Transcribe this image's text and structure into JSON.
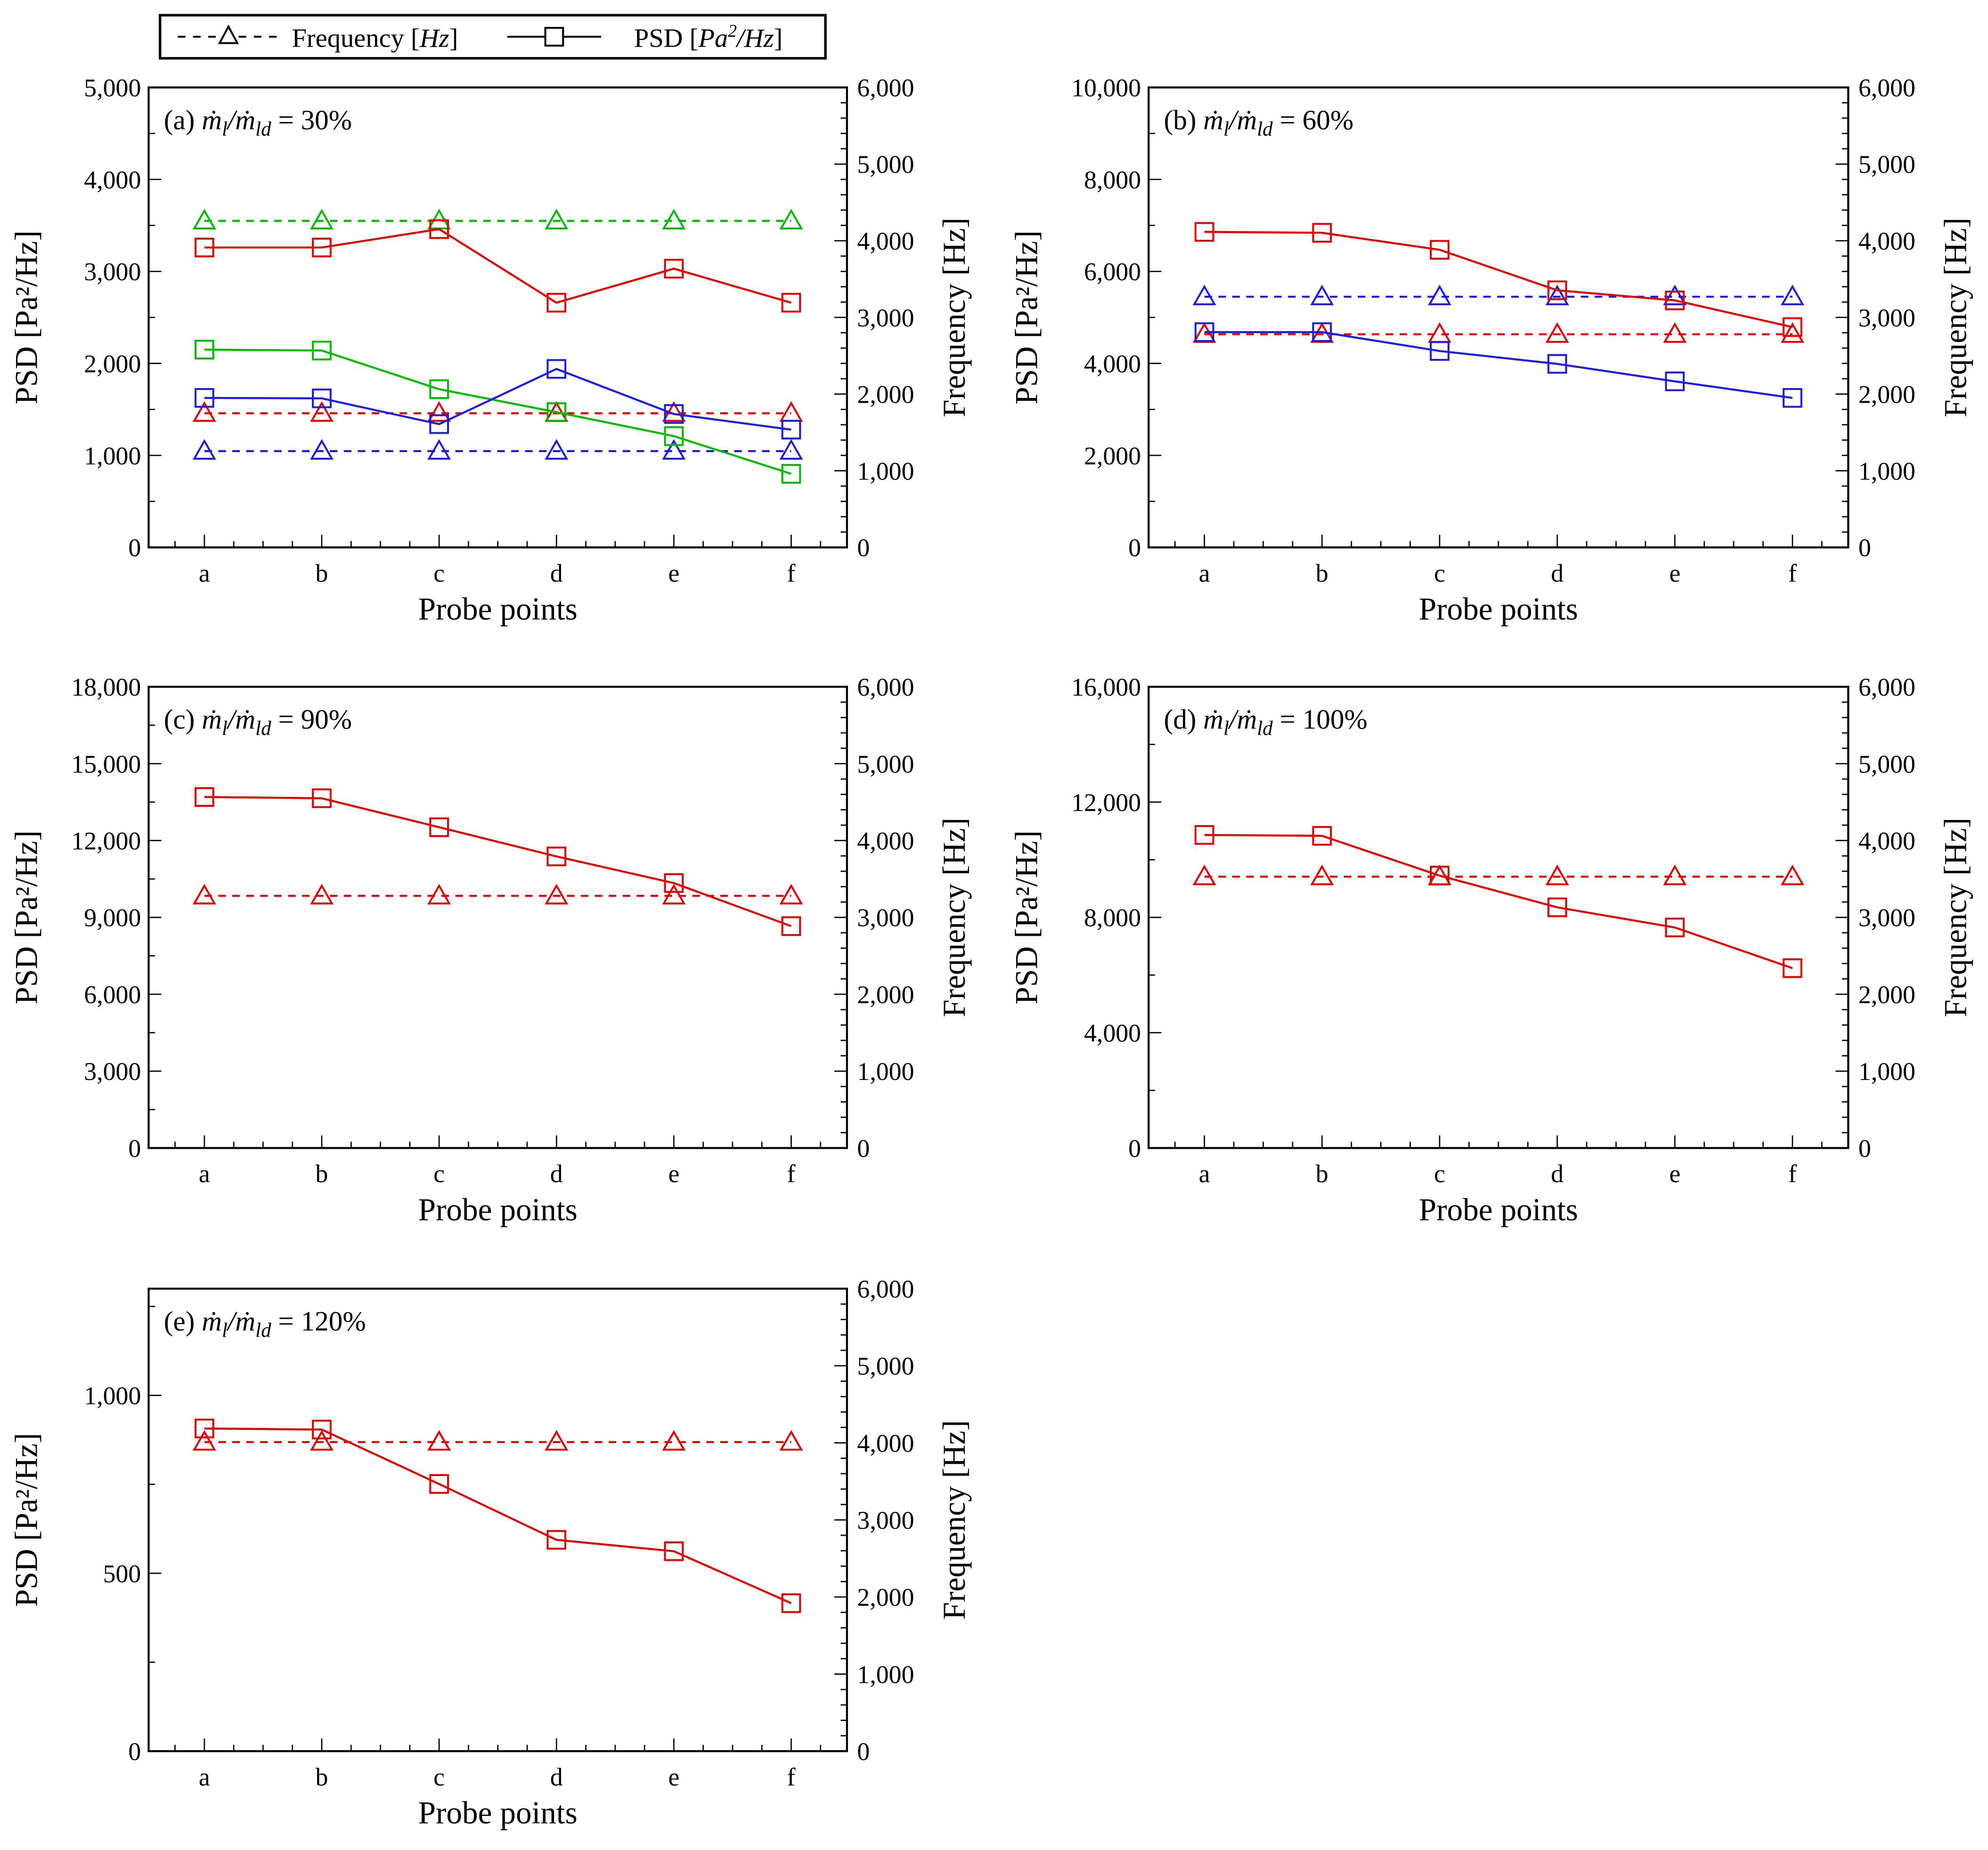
{
  "legend": {
    "frequency_label": "Frequency [",
    "frequency_unit": "Hz",
    "psd_label": "PSD [",
    "psd_unit_a": "Pa",
    "psd_unit_sup": "2",
    "psd_unit_b": "/Hz",
    "close": "]"
  },
  "formula": {
    "m": "ṁ",
    "sub1": "l",
    "slash": "/",
    "sub2": "ld",
    "eq": "="
  },
  "colors": {
    "red": "#e00000",
    "green": "#00bb00",
    "blue": "#1c1ce0",
    "axis": "#000000"
  },
  "chart_data": [
    {
      "type": "line",
      "panel": "(a)",
      "ratio": "30%",
      "xlabel": "Probe points",
      "ylabel": "PSD [Pa²/Hz]",
      "y2label": "Frequency [Hz]",
      "categories": [
        "a",
        "b",
        "c",
        "d",
        "e",
        "f"
      ],
      "ylim": [
        0,
        5000
      ],
      "yticks": [
        0,
        1000,
        2000,
        3000,
        4000,
        5000
      ],
      "yticklabels": [
        "0",
        "1,000",
        "2,000",
        "3,000",
        "4,000",
        "5,000"
      ],
      "y2lim": [
        0,
        6000
      ],
      "y2ticks": [
        0,
        1000,
        2000,
        3000,
        4000,
        5000,
        6000
      ],
      "y2ticklabels": [
        "0",
        "1,000",
        "2,000",
        "3,000",
        "4,000",
        "5,000",
        "6,000"
      ],
      "series": [
        {
          "kind": "frequency",
          "color": "green",
          "axis": "right",
          "values": [
            4260,
            4260,
            4260,
            4260,
            4260,
            4260
          ]
        },
        {
          "kind": "frequency",
          "color": "red",
          "axis": "right",
          "values": [
            1750,
            1750,
            1750,
            1750,
            1750,
            1750
          ]
        },
        {
          "kind": "frequency",
          "color": "blue",
          "axis": "right",
          "values": [
            1256,
            1256,
            1256,
            1256,
            1256,
            1256
          ]
        },
        {
          "kind": "psd",
          "color": "red",
          "axis": "left",
          "values": [
            3260,
            3260,
            3460,
            2660,
            3030,
            2660
          ]
        },
        {
          "kind": "psd",
          "color": "green",
          "axis": "left",
          "values": [
            2150,
            2140,
            1720,
            1470,
            1210,
            800
          ]
        },
        {
          "kind": "psd",
          "color": "blue",
          "axis": "left",
          "values": [
            1625,
            1620,
            1340,
            1940,
            1450,
            1280
          ]
        }
      ]
    },
    {
      "type": "line",
      "panel": "(b)",
      "ratio": "60%",
      "xlabel": "Probe points",
      "ylabel": "PSD [Pa²/Hz]",
      "y2label": "Frequency [Hz]",
      "categories": [
        "a",
        "b",
        "c",
        "d",
        "e",
        "f"
      ],
      "ylim": [
        0,
        10000
      ],
      "yticks": [
        0,
        2000,
        4000,
        6000,
        8000,
        10000
      ],
      "yticklabels": [
        "0",
        "2,000",
        "4,000",
        "6,000",
        "8,000",
        "10,000"
      ],
      "y2lim": [
        0,
        6000
      ],
      "y2ticks": [
        0,
        1000,
        2000,
        3000,
        4000,
        5000,
        6000
      ],
      "y2ticklabels": [
        "0",
        "1,000",
        "2,000",
        "3,000",
        "4,000",
        "5,000",
        "6,000"
      ],
      "series": [
        {
          "kind": "frequency",
          "color": "blue",
          "axis": "right",
          "values": [
            3270,
            3270,
            3270,
            3270,
            3270,
            3270
          ]
        },
        {
          "kind": "frequency",
          "color": "red",
          "axis": "right",
          "values": [
            2780,
            2780,
            2780,
            2780,
            2780,
            2780
          ]
        },
        {
          "kind": "psd",
          "color": "red",
          "axis": "left",
          "values": [
            6860,
            6840,
            6470,
            5590,
            5370,
            4790
          ]
        },
        {
          "kind": "psd",
          "color": "blue",
          "axis": "left",
          "values": [
            4680,
            4680,
            4270,
            3990,
            3610,
            3250
          ]
        }
      ]
    },
    {
      "type": "line",
      "panel": "(c)",
      "ratio": "90%",
      "xlabel": "Probe points",
      "ylabel": "PSD [Pa²/Hz]",
      "y2label": "Frequency [Hz]",
      "categories": [
        "a",
        "b",
        "c",
        "d",
        "e",
        "f"
      ],
      "ylim": [
        0,
        18000
      ],
      "yticks": [
        0,
        3000,
        6000,
        9000,
        12000,
        15000,
        18000
      ],
      "yticklabels": [
        "0",
        "3,000",
        "6,000",
        "9,000",
        "12,000",
        "15,000",
        "18,000"
      ],
      "y2lim": [
        0,
        6000
      ],
      "y2ticks": [
        0,
        1000,
        2000,
        3000,
        4000,
        5000,
        6000
      ],
      "y2ticklabels": [
        "0",
        "1,000",
        "2,000",
        "3,000",
        "4,000",
        "5,000",
        "6,000"
      ],
      "series": [
        {
          "kind": "frequency",
          "color": "red",
          "axis": "right",
          "values": [
            3280,
            3280,
            3280,
            3280,
            3280,
            3280
          ]
        },
        {
          "kind": "psd",
          "color": "red",
          "axis": "left",
          "values": [
            13700,
            13650,
            12520,
            11380,
            10340,
            8660
          ]
        }
      ]
    },
    {
      "type": "line",
      "panel": "(d)",
      "ratio": "100%",
      "xlabel": "Probe points",
      "ylabel": "PSD [Pa²/Hz]",
      "y2label": "Frequency [Hz]",
      "categories": [
        "a",
        "b",
        "c",
        "d",
        "e",
        "f"
      ],
      "ylim": [
        0,
        16000
      ],
      "yticks": [
        0,
        4000,
        8000,
        12000,
        16000
      ],
      "yticklabels": [
        "0",
        "4,000",
        "8,000",
        "12,000",
        "16,000"
      ],
      "y2lim": [
        0,
        6000
      ],
      "y2ticks": [
        0,
        1000,
        2000,
        3000,
        4000,
        5000,
        6000
      ],
      "y2ticklabels": [
        "0",
        "1,000",
        "2,000",
        "3,000",
        "4,000",
        "5,000",
        "6,000"
      ],
      "series": [
        {
          "kind": "frequency",
          "color": "red",
          "axis": "right",
          "values": [
            3530,
            3530,
            3530,
            3530,
            3530,
            3530
          ]
        },
        {
          "kind": "psd",
          "color": "red",
          "axis": "left",
          "values": [
            10860,
            10830,
            9450,
            8350,
            7650,
            6240
          ]
        }
      ]
    },
    {
      "type": "line",
      "panel": "(e)",
      "ratio": "120%",
      "xlabel": "Probe points",
      "ylabel": "PSD [Pa²/Hz]",
      "y2label": "Frequency [Hz]",
      "categories": [
        "a",
        "b",
        "c",
        "d",
        "e",
        "f"
      ],
      "ylim": [
        0,
        1300
      ],
      "yticks": [
        0,
        500,
        1000
      ],
      "yticklabels": [
        "0",
        "500",
        "1,000"
      ],
      "y2lim": [
        0,
        6000
      ],
      "y2ticks": [
        0,
        1000,
        2000,
        3000,
        4000,
        5000,
        6000
      ],
      "y2ticklabels": [
        "0",
        "1,000",
        "2,000",
        "3,000",
        "4,000",
        "5,000",
        "6,000"
      ],
      "series": [
        {
          "kind": "frequency",
          "color": "red",
          "axis": "right",
          "values": [
            4010,
            4010,
            4010,
            4010,
            4010,
            4010
          ]
        },
        {
          "kind": "psd",
          "color": "red",
          "axis": "left",
          "values": [
            907,
            904,
            751,
            594,
            562,
            416
          ]
        }
      ]
    }
  ]
}
